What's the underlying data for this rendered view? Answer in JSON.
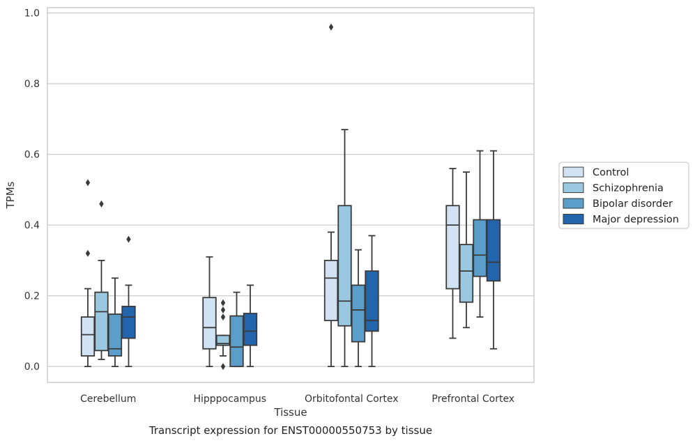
{
  "caption": "Transcript expression for ENST00000550753 by tissue",
  "chart_data": {
    "type": "box",
    "xlabel": "Tissue",
    "ylabel": "TPMs",
    "ylim": [
      -0.045,
      1.015
    ],
    "yticks": [
      "0.0",
      "0.2",
      "0.4",
      "0.6",
      "0.8",
      "1.0"
    ],
    "ytick_values": [
      0.0,
      0.2,
      0.4,
      0.6,
      0.8,
      1.0
    ],
    "grid": "horizontal",
    "legend_position": "right",
    "categories": [
      "Cerebellum",
      "Hipppocampus",
      "Orbitofontal Cortex",
      "Prefrontal Cortex"
    ],
    "series": [
      {
        "name": "Control",
        "color": "#d1e2f3",
        "boxes": [
          {
            "whisker_low": 0.0,
            "q1": 0.03,
            "median": 0.09,
            "q3": 0.14,
            "whisker_high": 0.22,
            "outliers": [
              0.32,
              0.52
            ]
          },
          {
            "whisker_low": 0.0,
            "q1": 0.05,
            "median": 0.11,
            "q3": 0.195,
            "whisker_high": 0.31,
            "outliers": []
          },
          {
            "whisker_low": 0.0,
            "q1": 0.13,
            "median": 0.25,
            "q3": 0.3,
            "whisker_high": 0.38,
            "outliers": [
              0.96
            ]
          },
          {
            "whisker_low": 0.08,
            "q1": 0.22,
            "median": 0.4,
            "q3": 0.455,
            "whisker_high": 0.56,
            "outliers": []
          }
        ]
      },
      {
        "name": "Schizophrenia",
        "color": "#9ac8e0",
        "boxes": [
          {
            "whisker_low": 0.02,
            "q1": 0.045,
            "median": 0.155,
            "q3": 0.21,
            "whisker_high": 0.3,
            "outliers": [
              0.46
            ]
          },
          {
            "whisker_low": 0.03,
            "q1": 0.06,
            "median": 0.065,
            "q3": 0.088,
            "whisker_high": 0.088,
            "outliers": [
              0.0,
              0.14,
              0.16,
              0.18
            ]
          },
          {
            "whisker_low": 0.0,
            "q1": 0.115,
            "median": 0.185,
            "q3": 0.455,
            "whisker_high": 0.67,
            "outliers": []
          },
          {
            "whisker_low": 0.11,
            "q1": 0.182,
            "median": 0.27,
            "q3": 0.345,
            "whisker_high": 0.55,
            "outliers": []
          }
        ]
      },
      {
        "name": "Bipolar disorder",
        "color": "#5a9ec9",
        "boxes": [
          {
            "whisker_low": 0.0,
            "q1": 0.03,
            "median": 0.05,
            "q3": 0.148,
            "whisker_high": 0.25,
            "outliers": []
          },
          {
            "whisker_low": 0.0,
            "q1": 0.0,
            "median": 0.055,
            "q3": 0.143,
            "whisker_high": 0.21,
            "outliers": []
          },
          {
            "whisker_low": 0.0,
            "q1": 0.07,
            "median": 0.16,
            "q3": 0.23,
            "whisker_high": 0.33,
            "outliers": []
          },
          {
            "whisker_low": 0.14,
            "q1": 0.255,
            "median": 0.315,
            "q3": 0.415,
            "whisker_high": 0.61,
            "outliers": []
          }
        ]
      },
      {
        "name": "Major depression",
        "color": "#2265ac",
        "boxes": [
          {
            "whisker_low": 0.0,
            "q1": 0.08,
            "median": 0.14,
            "q3": 0.17,
            "whisker_high": 0.23,
            "outliers": [
              0.36
            ]
          },
          {
            "whisker_low": 0.0,
            "q1": 0.06,
            "median": 0.1,
            "q3": 0.15,
            "whisker_high": 0.23,
            "outliers": []
          },
          {
            "whisker_low": 0.0,
            "q1": 0.1,
            "median": 0.13,
            "q3": 0.27,
            "whisker_high": 0.37,
            "outliers": []
          },
          {
            "whisker_low": 0.05,
            "q1": 0.242,
            "median": 0.295,
            "q3": 0.415,
            "whisker_high": 0.61,
            "outliers": []
          }
        ]
      }
    ]
  }
}
